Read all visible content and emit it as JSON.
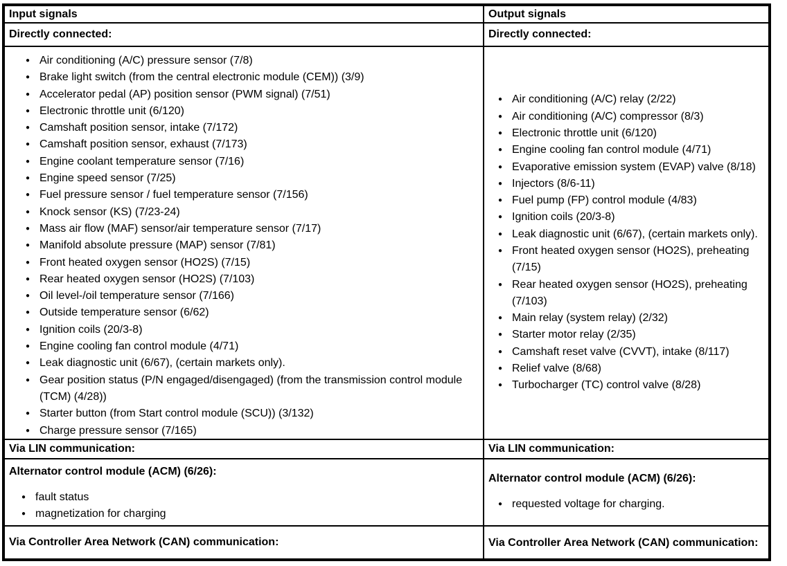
{
  "icons": {
    "bullet": "●"
  },
  "table": {
    "input": {
      "header": "Input signals",
      "direct_header": "Directly connected:",
      "direct_items": [
        "Air conditioning (A/C) pressure sensor (7/8)",
        "Brake light switch (from the central electronic module (CEM)) (3/9)",
        "Accelerator pedal (AP) position sensor (PWM signal) (7/51)",
        "Electronic throttle unit (6/120)",
        "Camshaft position sensor, intake (7/172)",
        "Camshaft position sensor, exhaust (7/173)",
        "Engine coolant temperature sensor (7/16)",
        "Engine speed sensor (7/25)",
        "Fuel pressure sensor / fuel temperature sensor (7/156)",
        "Knock sensor (KS) (7/23-24)",
        "Mass air flow (MAF) sensor/air temperature sensor (7/17)",
        "Manifold absolute pressure (MAP) sensor (7/81)",
        "Front heated oxygen sensor (HO2S) (7/15)",
        "Rear heated oxygen sensor (HO2S) (7/103)",
        "Oil level-/oil temperature sensor (7/166)",
        "Outside temperature sensor (6/62)",
        "Ignition coils (20/3-8)",
        "Engine cooling fan control module (4/71)",
        "Leak diagnostic unit (6/67), (certain markets only).",
        "Gear position status (P/N engaged/disengaged) (from the transmission control module (TCM) (4/28))",
        "Starter button (from Start control module (SCU)) (3/132)",
        "Charge pressure sensor (7/165)"
      ],
      "lin_header": "Via LIN communication:",
      "acm_header": "Alternator control module (ACM) (6/26):",
      "acm_items": [
        "fault status",
        "magnetization for charging"
      ],
      "can_header": "Via Controller Area Network (CAN) communication:"
    },
    "output": {
      "header": "Output signals",
      "direct_header": "Directly connected:",
      "direct_items": [
        "Air conditioning (A/C) relay (2/22)",
        "Air conditioning (A/C) compressor (8/3)",
        "Electronic throttle unit (6/120)",
        "Engine cooling fan control module (4/71)",
        "Evaporative emission system (EVAP) valve (8/18)",
        "Injectors (8/6-11)",
        "Fuel pump (FP) control module (4/83)",
        "Ignition coils (20/3-8)",
        "Leak diagnostic unit (6/67), (certain markets only).",
        "Front heated oxygen sensor (HO2S), preheating (7/15)",
        "Rear heated oxygen sensor (HO2S), preheating (7/103)",
        "Main relay (system relay) (2/32)",
        "Starter motor relay (2/35)",
        "Camshaft reset valve (CVVT), intake (8/117)",
        "Relief valve (8/68)",
        "Turbocharger (TC) control valve (8/28)"
      ],
      "lin_header": "Via LIN communication:",
      "acm_header": "Alternator control module (ACM) (6/26):",
      "acm_items": [
        "requested voltage for charging."
      ],
      "can_header": "Via Controller Area Network (CAN) communication:"
    }
  }
}
